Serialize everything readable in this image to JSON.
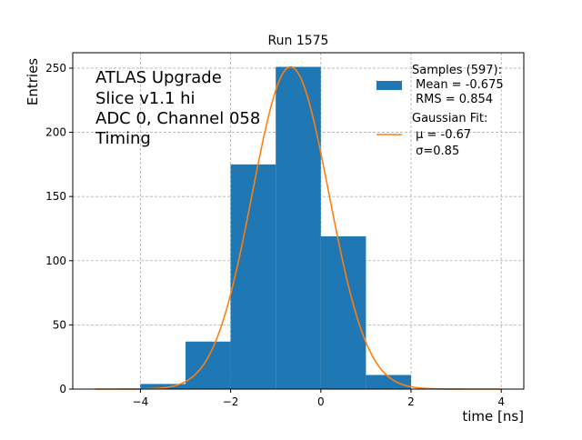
{
  "chart_data": {
    "type": "bar",
    "title": "Run 1575",
    "xlabel": "time [ns]",
    "ylabel": "Entries",
    "xlim": [
      -5.5,
      4.5
    ],
    "ylim": [
      0,
      262
    ],
    "xticks": [
      -4,
      -2,
      0,
      2,
      4
    ],
    "xtick_labels": [
      "−4",
      "−2",
      "0",
      "2",
      "4"
    ],
    "yticks": [
      0,
      50,
      100,
      150,
      200,
      250
    ],
    "ytick_labels": [
      "0",
      "50",
      "100",
      "150",
      "200",
      "250"
    ],
    "grid": true,
    "histogram": {
      "name": "Samples (597):",
      "color": "#1f77b4",
      "bin_edges": [
        -4,
        -3,
        -2,
        -1,
        0,
        1,
        2
      ],
      "counts": [
        4,
        37,
        175,
        251,
        119,
        11
      ]
    },
    "fit": {
      "name": "Gaussian Fit:",
      "color": "#ff7f0e",
      "mu": -0.67,
      "sigma": 0.85,
      "amplitude": 251,
      "x_range": [
        -5,
        4
      ]
    },
    "annotation": [
      "ATLAS Upgrade",
      "Slice v1.1 hi",
      "ADC 0, Channel 058",
      "Timing"
    ],
    "legend": {
      "placement": "top-right",
      "hist_lines": [
        "Samples (597):",
        " Mean = -0.675",
        " RMS = 0.854"
      ],
      "fit_lines": [
        "Gaussian Fit:",
        " μ = -0.67",
        " σ=0.85"
      ]
    }
  }
}
